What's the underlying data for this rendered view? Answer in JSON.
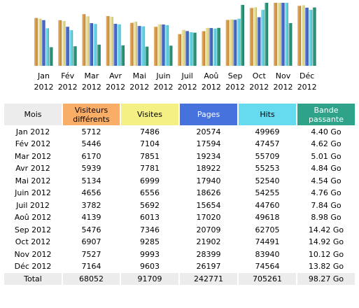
{
  "chart_data": {
    "type": "bar",
    "categories": [
      [
        "Jan",
        "2012"
      ],
      [
        "Fév",
        "2012"
      ],
      [
        "Mar",
        "2012"
      ],
      [
        "Avr",
        "2012"
      ],
      [
        "Mai",
        "2012"
      ],
      [
        "Juin",
        "2012"
      ],
      [
        "Juil",
        "2012"
      ],
      [
        "Aoû",
        "2012"
      ],
      [
        "Sep",
        "2012"
      ],
      [
        "Oct",
        "2012"
      ],
      [
        "Nov",
        "2012"
      ],
      [
        "Déc",
        "2012"
      ]
    ],
    "series": [
      {
        "name": "Visiteurs différents",
        "color": "#d8963d",
        "values": [
          5712,
          5446,
          6170,
          5939,
          5134,
          4656,
          3782,
          4139,
          5476,
          6907,
          7527,
          7164
        ]
      },
      {
        "name": "Visites",
        "color": "#e6dc8c",
        "values": [
          7486,
          7104,
          7851,
          7781,
          6999,
          6556,
          5692,
          6013,
          7346,
          9285,
          9993,
          9603
        ]
      },
      {
        "name": "Pages",
        "color": "#3d62c6",
        "values": [
          20574,
          17594,
          19234,
          18922,
          17940,
          18626,
          15654,
          17020,
          20709,
          21902,
          28399,
          26197
        ]
      },
      {
        "name": "Hits",
        "color": "#5bd3e6",
        "values": [
          49969,
          47457,
          55709,
          55253,
          52540,
          54255,
          44760,
          49618,
          62705,
          74491,
          83940,
          74564
        ]
      },
      {
        "name": "Bande passante",
        "color": "#1f8f74",
        "values": [
          4.4,
          4.62,
          5.01,
          4.84,
          4.54,
          4.76,
          7.84,
          8.98,
          14.42,
          14.92,
          10.12,
          13.82
        ]
      }
    ]
  },
  "table": {
    "headers": {
      "mois": "Mois",
      "visiteurs": [
        "Visiteurs",
        "différents"
      ],
      "visites": "Visites",
      "pages": "Pages",
      "hits": "Hits",
      "bande": [
        "Bande",
        "passante"
      ]
    },
    "rows": [
      {
        "mois": "Jan 2012",
        "visiteurs": "5712",
        "visites": "7486",
        "pages": "20574",
        "hits": "49969",
        "bande": "4.40 Go"
      },
      {
        "mois": "Fév 2012",
        "visiteurs": "5446",
        "visites": "7104",
        "pages": "17594",
        "hits": "47457",
        "bande": "4.62 Go"
      },
      {
        "mois": "Mar 2012",
        "visiteurs": "6170",
        "visites": "7851",
        "pages": "19234",
        "hits": "55709",
        "bande": "5.01 Go"
      },
      {
        "mois": "Avr 2012",
        "visiteurs": "5939",
        "visites": "7781",
        "pages": "18922",
        "hits": "55253",
        "bande": "4.84 Go"
      },
      {
        "mois": "Mai 2012",
        "visiteurs": "5134",
        "visites": "6999",
        "pages": "17940",
        "hits": "52540",
        "bande": "4.54 Go"
      },
      {
        "mois": "Juin 2012",
        "visiteurs": "4656",
        "visites": "6556",
        "pages": "18626",
        "hits": "54255",
        "bande": "4.76 Go"
      },
      {
        "mois": "Juil 2012",
        "visiteurs": "3782",
        "visites": "5692",
        "pages": "15654",
        "hits": "44760",
        "bande": "7.84 Go"
      },
      {
        "mois": "Aoû 2012",
        "visiteurs": "4139",
        "visites": "6013",
        "pages": "17020",
        "hits": "49618",
        "bande": "8.98 Go"
      },
      {
        "mois": "Sep 2012",
        "visiteurs": "5476",
        "visites": "7346",
        "pages": "20709",
        "hits": "62705",
        "bande": "14.42 Go"
      },
      {
        "mois": "Oct 2012",
        "visiteurs": "6907",
        "visites": "9285",
        "pages": "21902",
        "hits": "74491",
        "bande": "14.92 Go"
      },
      {
        "mois": "Nov 2012",
        "visiteurs": "7527",
        "visites": "9993",
        "pages": "28399",
        "hits": "83940",
        "bande": "10.12 Go"
      },
      {
        "mois": "Déc 2012",
        "visiteurs": "7164",
        "visites": "9603",
        "pages": "26197",
        "hits": "74564",
        "bande": "13.82 Go"
      }
    ],
    "total": {
      "mois": "Total",
      "visiteurs": "68052",
      "visites": "91709",
      "pages": "242771",
      "hits": "705261",
      "bande": "98.27 Go"
    }
  }
}
